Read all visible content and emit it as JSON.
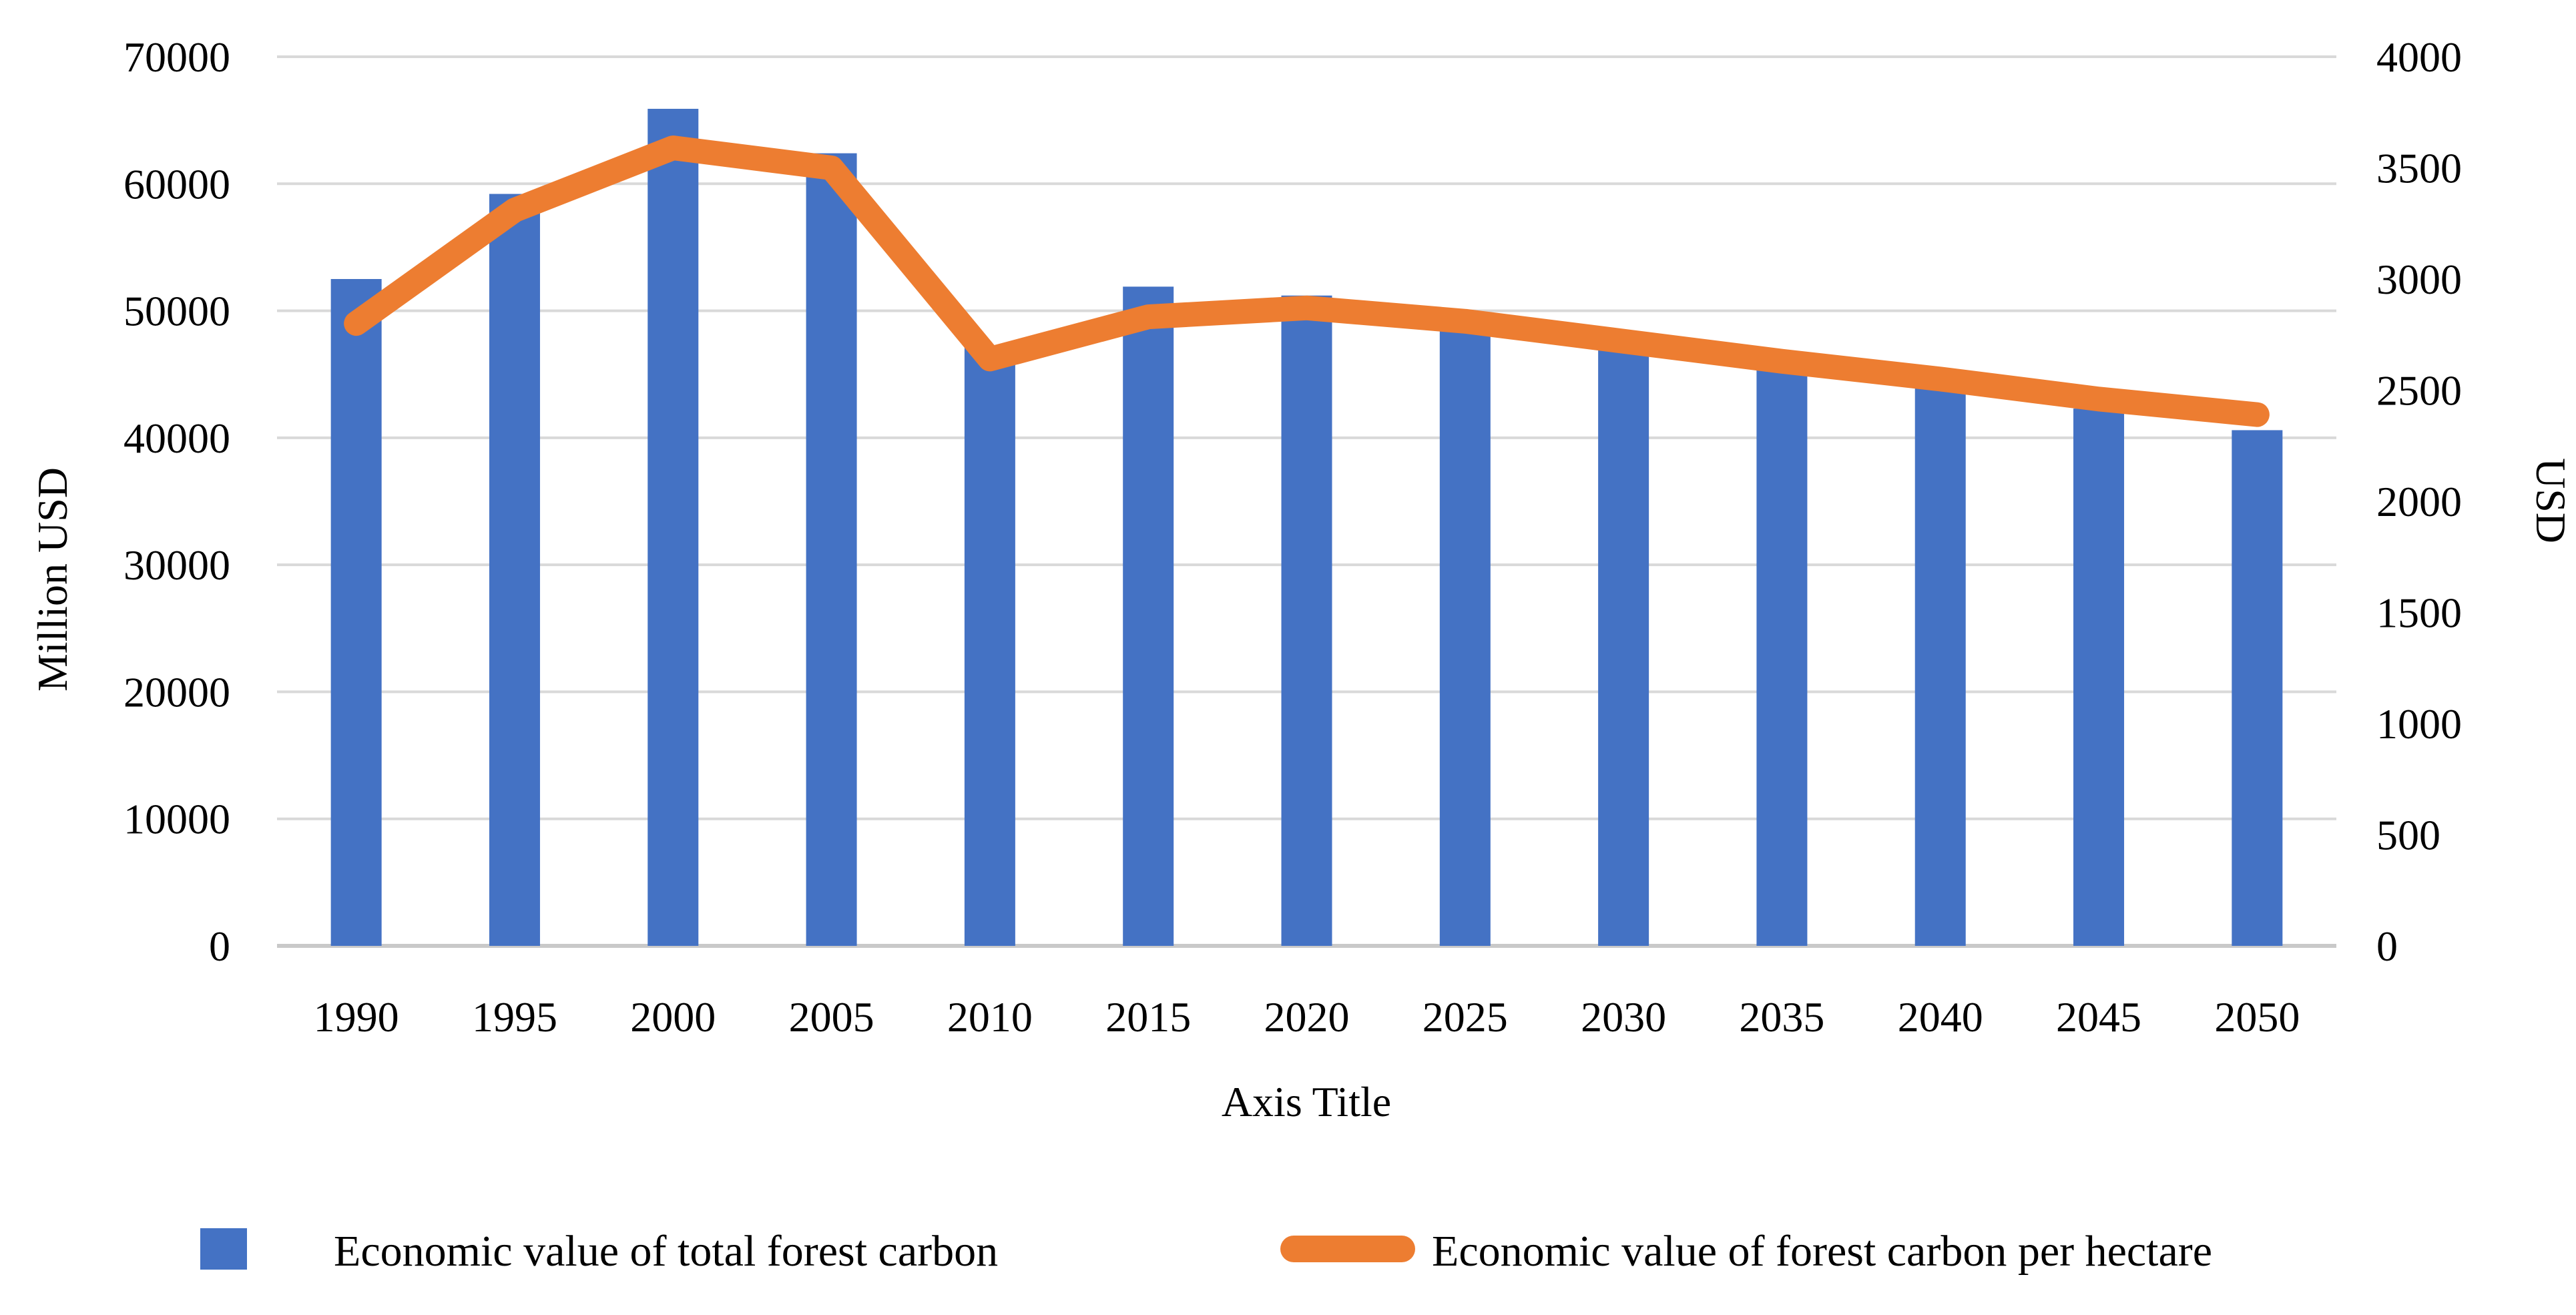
{
  "chart_data": {
    "type": "bar",
    "title": "",
    "categories": [
      "1990",
      "1995",
      "2000",
      "2005",
      "2010",
      "2015",
      "2020",
      "2025",
      "2030",
      "2035",
      "2040",
      "2045",
      "2050"
    ],
    "series": [
      {
        "name": "Economic value of total forest carbon",
        "kind": "bar",
        "axis": "left",
        "color": "#4472C4",
        "values": [
          52500,
          59200,
          65900,
          62400,
          47200,
          51900,
          51200,
          48600,
          47200,
          45800,
          44100,
          42300,
          40600
        ]
      },
      {
        "name": "Economic value of forest carbon per hectare",
        "kind": "line",
        "axis": "right",
        "color": "#ED7D31",
        "values": [
          2800,
          3310,
          3590,
          3500,
          2640,
          2830,
          2870,
          2810,
          2720,
          2630,
          2550,
          2460,
          2390
        ]
      }
    ],
    "left_axis": {
      "title": "Million USD",
      "title_color": "#1272BE",
      "min": 0,
      "max": 70000,
      "step": 10000
    },
    "right_axis": {
      "title": "USD",
      "title_color": "#ED7D31",
      "min": 0,
      "max": 4000,
      "step": 500
    },
    "x_axis": {
      "title": "Axis Title"
    },
    "grid": "horizontal",
    "gridline_color": "#D9D9D9",
    "baseline_color": "#C9C9C9",
    "legend_position": "bottom"
  }
}
